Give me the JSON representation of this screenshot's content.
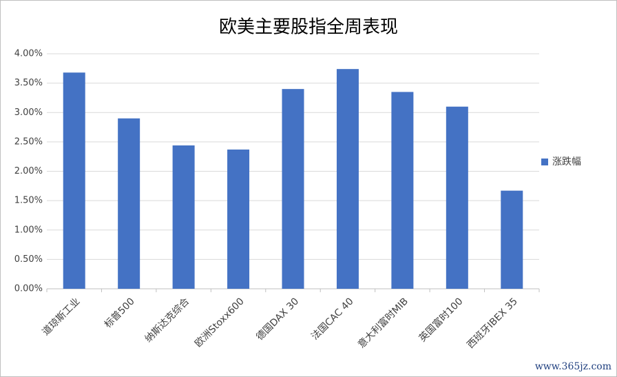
{
  "chart_data": {
    "type": "bar",
    "title": "欧美主要股指全周表现",
    "categories": [
      "道琼斯工业",
      "标普500",
      "纳斯达克综合",
      "欧洲Stoxx600",
      "德国DAX 30",
      "法国CAC 40",
      "意大利富时MIB",
      "英国富时100",
      "西班牙IBEX 35"
    ],
    "series": [
      {
        "name": "涨跌幅",
        "color": "#4472c4",
        "values": [
          3.68,
          2.9,
          2.44,
          2.37,
          3.4,
          3.74,
          3.35,
          3.1,
          1.67
        ]
      }
    ],
    "ylim": [
      0,
      4
    ],
    "yticks": [
      {
        "value": 0,
        "label": "0.00%"
      },
      {
        "value": 0.5,
        "label": "0.50%"
      },
      {
        "value": 1,
        "label": "1.00%"
      },
      {
        "value": 1.5,
        "label": "1.50%"
      },
      {
        "value": 2,
        "label": "2.00%"
      },
      {
        "value": 2.5,
        "label": "2.50%"
      },
      {
        "value": 3,
        "label": "3.00%"
      },
      {
        "value": 3.5,
        "label": "3.50%"
      },
      {
        "value": 4,
        "label": "4.00%"
      }
    ],
    "grid": true,
    "legend": "right",
    "watermark": "www.365jz.com"
  }
}
